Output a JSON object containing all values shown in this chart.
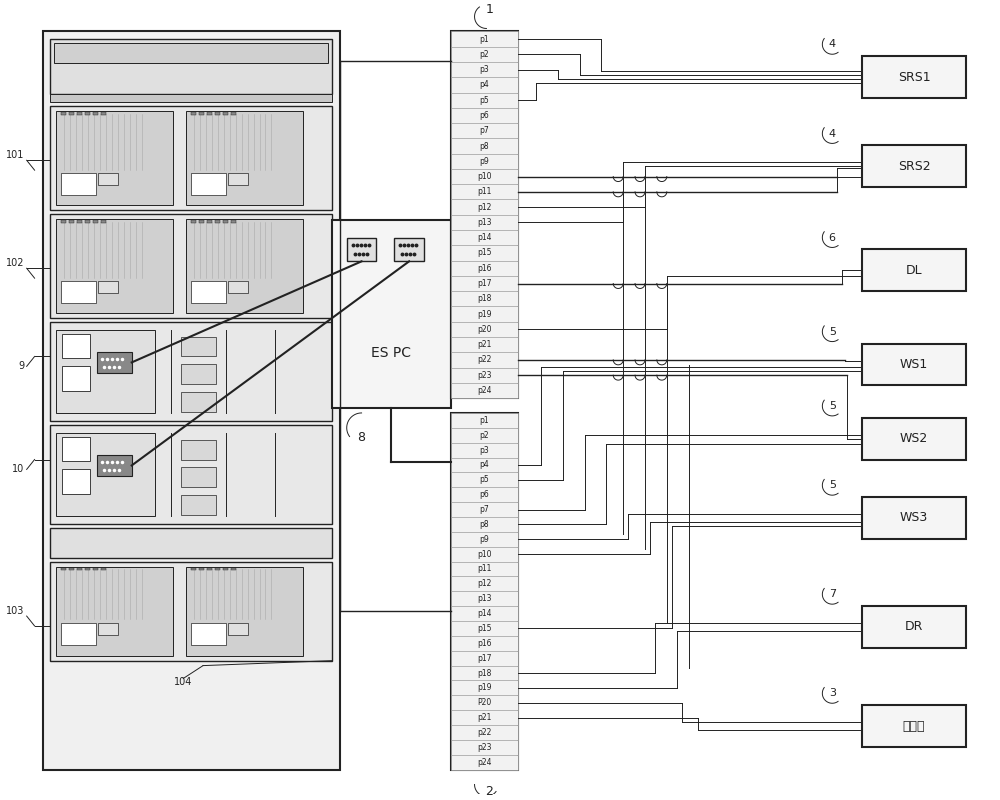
{
  "bg_color": "#ffffff",
  "lc": "#222222",
  "gray1": "#d8d8d8",
  "gray2": "#e8e8e8",
  "gray3": "#c0c0c0",
  "gray4": "#b0b0b0",
  "white": "#ffffff",
  "connector_labels_top": [
    "p1",
    "p2",
    "p3",
    "p4",
    "p5",
    "p6",
    "p7",
    "p8",
    "p9",
    "p10",
    "p11",
    "p12",
    "p13",
    "p14",
    "p15",
    "p16",
    "p17",
    "p18",
    "p19",
    "p20",
    "p21",
    "p22",
    "p23",
    "p24"
  ],
  "connector_labels_bot": [
    "p1",
    "p2",
    "p3",
    "p4",
    "p5",
    "p6",
    "p7",
    "p8",
    "p9",
    "p10",
    "p11",
    "p12",
    "p13",
    "p14",
    "p15",
    "p16",
    "p17",
    "p18",
    "p19",
    "P20",
    "p21",
    "p22",
    "p23",
    "p24"
  ],
  "right_boxes": [
    "SRS1",
    "SRS2",
    "DL",
    "WS1",
    "WS2",
    "WS3",
    "DR",
    "路由器"
  ],
  "right_labels": [
    "4",
    "4",
    "6",
    "5",
    "5",
    "5",
    "7",
    "3"
  ],
  "espc_text": "ES PC",
  "label_1": "1",
  "label_2": "2",
  "label_8": "8",
  "label_104": "104",
  "cab_labels": [
    "101",
    "102",
    "9",
    "10",
    "103"
  ]
}
